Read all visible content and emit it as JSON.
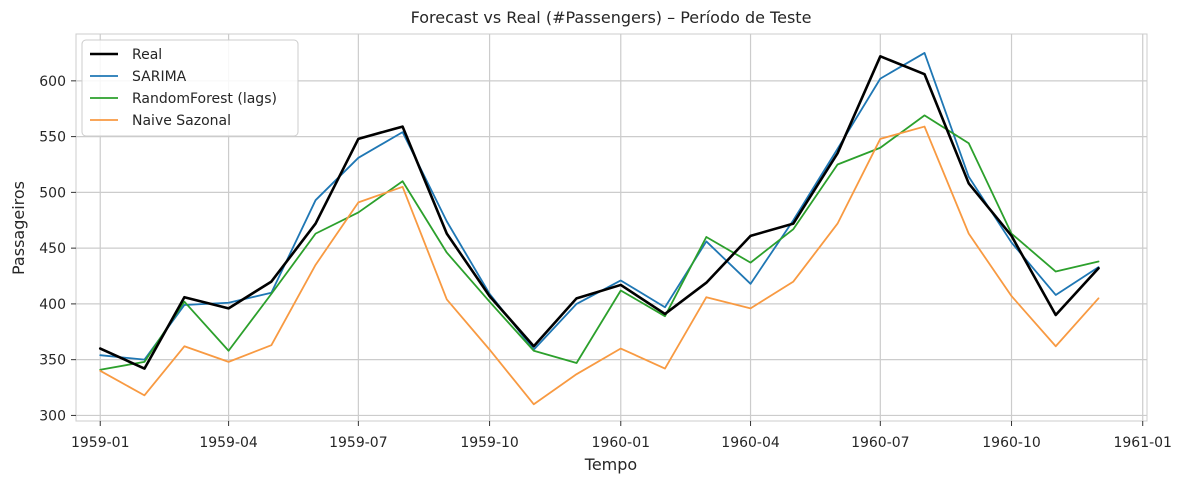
{
  "chart_data": {
    "type": "line",
    "title": "Forecast vs Real (#Passengers) – Período de Teste",
    "xlabel": "Tempo",
    "ylabel": "Passageiros",
    "xlim": [
      "1958-12-15",
      "1961-01-04"
    ],
    "ylim": [
      295,
      642
    ],
    "x_ticks": [
      "1959-01",
      "1959-04",
      "1959-07",
      "1959-10",
      "1960-01",
      "1960-04",
      "1960-07",
      "1960-10",
      "1961-01"
    ],
    "y_ticks": [
      300,
      350,
      400,
      450,
      500,
      550,
      600
    ],
    "grid": true,
    "legend_position": "top-left",
    "x": [
      "1959-01",
      "1959-02",
      "1959-03",
      "1959-04",
      "1959-05",
      "1959-06",
      "1959-07",
      "1959-08",
      "1959-09",
      "1959-10",
      "1959-11",
      "1959-12",
      "1960-01",
      "1960-02",
      "1960-03",
      "1960-04",
      "1960-05",
      "1960-06",
      "1960-07",
      "1960-08",
      "1960-09",
      "1960-10",
      "1960-11",
      "1960-12"
    ],
    "series": [
      {
        "name": "Real",
        "color": "#000000",
        "values": [
          360,
          342,
          406,
          396,
          420,
          472,
          548,
          559,
          463,
          407,
          362,
          405,
          417,
          391,
          419,
          461,
          472,
          535,
          622,
          606,
          508,
          461,
          390,
          432
        ]
      },
      {
        "name": "SARIMA",
        "color": "#1f77b4",
        "values": [
          354,
          350,
          399,
          401,
          410,
          493,
          531,
          554,
          474,
          409,
          359,
          400,
          421,
          397,
          456,
          418,
          475,
          539,
          602,
          625,
          514,
          455,
          408,
          433
        ]
      },
      {
        "name": "RandomForest (lags)",
        "color": "#2ca02c",
        "values": [
          341,
          348,
          402,
          358,
          409,
          463,
          482,
          510,
          446,
          402,
          358,
          347,
          412,
          389,
          460,
          437,
          467,
          525,
          540,
          569,
          544,
          463,
          429,
          438
        ]
      },
      {
        "name": "Naive Sazonal",
        "color": "#f89a42",
        "values": [
          340,
          318,
          362,
          348,
          363,
          435,
          491,
          505,
          404,
          359,
          310,
          337,
          360,
          342,
          406,
          396,
          420,
          472,
          548,
          559,
          463,
          407,
          362,
          405
        ]
      }
    ]
  }
}
